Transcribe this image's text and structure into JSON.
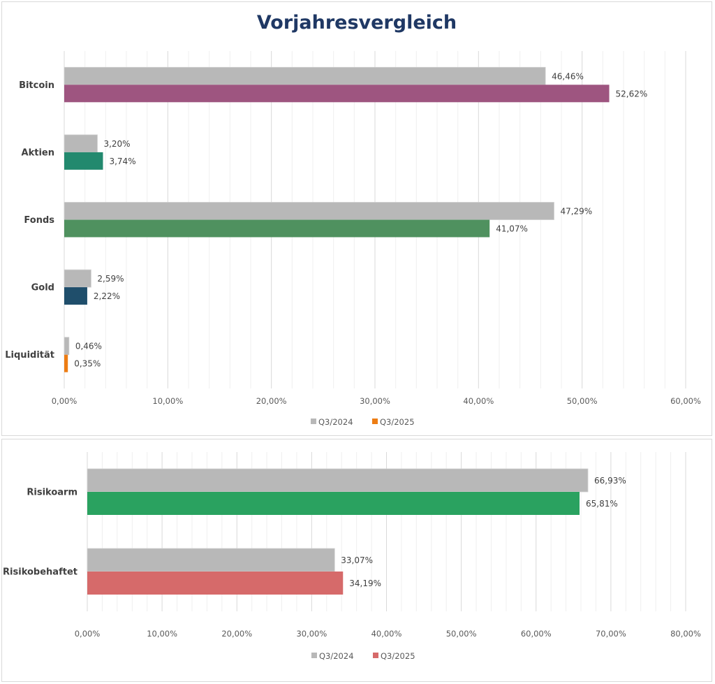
{
  "chart_data": [
    {
      "type": "bar",
      "orientation": "horizontal",
      "title": "Vorjahresvergleich",
      "xlabel": "",
      "ylabel": "",
      "categories": [
        "Bitcoin",
        "Aktien",
        "Fonds",
        "Gold",
        "Liquidität"
      ],
      "series": [
        {
          "name": "Q3/2024",
          "color": "#b8b8b8",
          "values": [
            46.46,
            3.2,
            47.29,
            2.59,
            0.46
          ],
          "labels": [
            "46,46%",
            "3,20%",
            "47,29%",
            "2,59%",
            "0,46%"
          ]
        },
        {
          "name": "Q3/2025",
          "colors": [
            "#9e5580",
            "#22896e",
            "#4f915f",
            "#1f4e6b",
            "#ed7d14"
          ],
          "legend_color": "#ed7d14",
          "values": [
            52.62,
            3.74,
            41.07,
            2.22,
            0.35
          ],
          "labels": [
            "52,62%",
            "3,74%",
            "41,07%",
            "2,22%",
            "0,35%"
          ]
        }
      ],
      "xlim": [
        0,
        60
      ],
      "xticks": [
        0,
        10,
        20,
        30,
        40,
        50,
        60
      ],
      "xtick_labels": [
        "0,00%",
        "10,00%",
        "20,00%",
        "30,00%",
        "40,00%",
        "50,00%",
        "60,00%"
      ],
      "minor_gridlines_per_major": 5,
      "grid": true,
      "legend": "bottom"
    },
    {
      "type": "bar",
      "orientation": "horizontal",
      "title": "",
      "xlabel": "",
      "ylabel": "",
      "categories": [
        "Risikoarm",
        "Risikobehaftet"
      ],
      "series": [
        {
          "name": "Q3/2024",
          "color": "#b8b8b8",
          "values": [
            66.93,
            33.07
          ],
          "labels": [
            "66,93%",
            "33,07%"
          ]
        },
        {
          "name": "Q3/2025",
          "colors": [
            "#2aa260",
            "#d66a6a"
          ],
          "legend_color": "#d66a6a",
          "values": [
            65.81,
            34.19
          ],
          "labels": [
            "65,81%",
            "34,19%"
          ]
        }
      ],
      "xlim": [
        0,
        80
      ],
      "xticks": [
        0,
        10,
        20,
        30,
        40,
        50,
        60,
        70,
        80
      ],
      "xtick_labels": [
        "0,00%",
        "10,00%",
        "20,00%",
        "30,00%",
        "40,00%",
        "50,00%",
        "60,00%",
        "70,00%",
        "80,00%"
      ],
      "minor_gridlines_per_major": 5,
      "grid": true,
      "legend": "bottom"
    }
  ]
}
